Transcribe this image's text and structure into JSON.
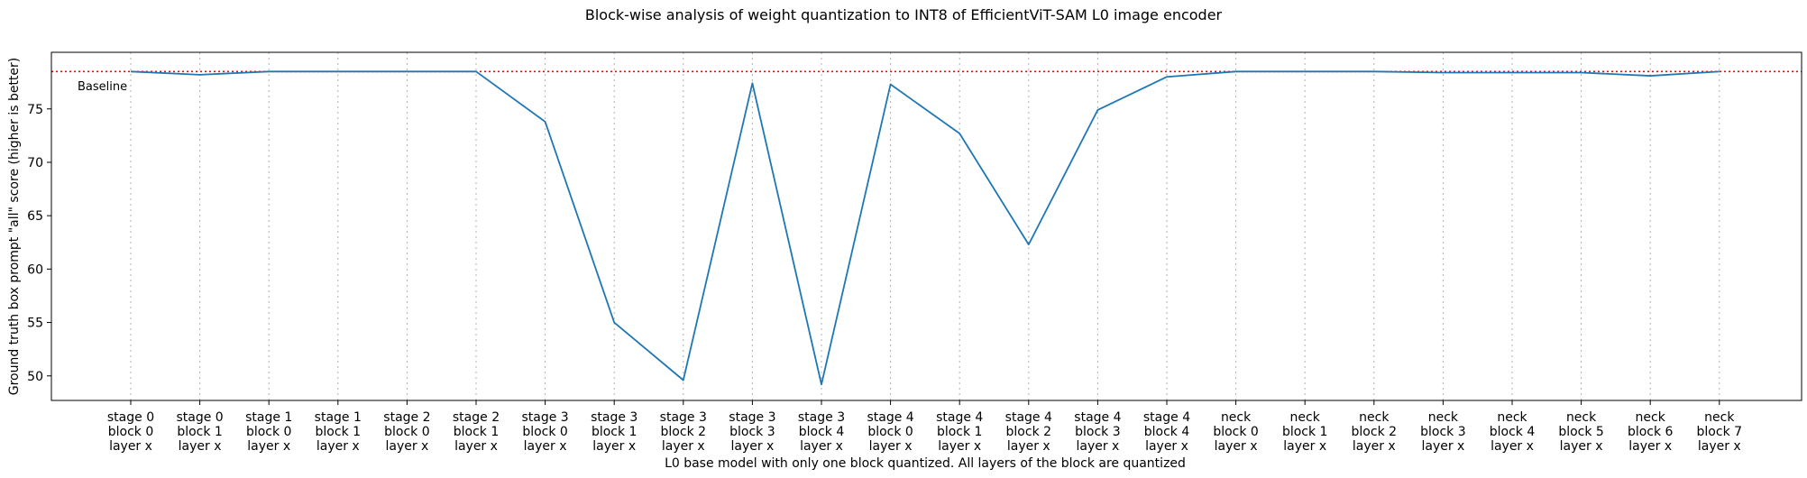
{
  "chart_data": {
    "type": "line",
    "title": "Block-wise analysis of weight quantization to INT8 of EfficientViT-SAM L0 image encoder",
    "xlabel": "L0 base model with only one block quantized. All layers of the block are quantized",
    "ylabel": "Ground truth box prompt \"all\" score (higher is better)",
    "ylim": [
      47.7,
      80.3
    ],
    "yticks": [
      50,
      55,
      60,
      65,
      70,
      75
    ],
    "grid": "vertical dotted at categories",
    "categories": [
      [
        "stage 0",
        "block 0",
        "layer x"
      ],
      [
        "stage 0",
        "block 1",
        "layer x"
      ],
      [
        "stage 1",
        "block 0",
        "layer x"
      ],
      [
        "stage 1",
        "block 1",
        "layer x"
      ],
      [
        "stage 2",
        "block 0",
        "layer x"
      ],
      [
        "stage 2",
        "block 1",
        "layer x"
      ],
      [
        "stage 3",
        "block 0",
        "layer x"
      ],
      [
        "stage 3",
        "block 1",
        "layer x"
      ],
      [
        "stage 3",
        "block 2",
        "layer x"
      ],
      [
        "stage 3",
        "block 3",
        "layer x"
      ],
      [
        "stage 3",
        "block 4",
        "layer x"
      ],
      [
        "stage 4",
        "block 0",
        "layer x"
      ],
      [
        "stage 4",
        "block 1",
        "layer x"
      ],
      [
        "stage 4",
        "block 2",
        "layer x"
      ],
      [
        "stage 4",
        "block 3",
        "layer x"
      ],
      [
        "stage 4",
        "block 4",
        "layer x"
      ],
      [
        "neck",
        "block 0",
        "layer x"
      ],
      [
        "neck",
        "block 1",
        "layer x"
      ],
      [
        "neck",
        "block 2",
        "layer x"
      ],
      [
        "neck",
        "block 3",
        "layer x"
      ],
      [
        "neck",
        "block 4",
        "layer x"
      ],
      [
        "neck",
        "block 5",
        "layer x"
      ],
      [
        "neck",
        "block 6",
        "layer x"
      ],
      [
        "neck",
        "block 7",
        "layer x"
      ]
    ],
    "series": [
      {
        "color": "#1f77b4",
        "values": [
          78.5,
          78.2,
          78.5,
          78.5,
          78.5,
          78.5,
          73.8,
          55.0,
          49.6,
          77.4,
          49.2,
          77.3,
          72.7,
          62.3,
          74.9,
          78.0,
          78.5,
          78.5,
          78.5,
          78.4,
          78.4,
          78.4,
          78.1,
          78.5
        ]
      }
    ],
    "baseline": {
      "label": "Baseline",
      "value": 78.5,
      "color": "#ff0000",
      "style": "dotted"
    }
  }
}
